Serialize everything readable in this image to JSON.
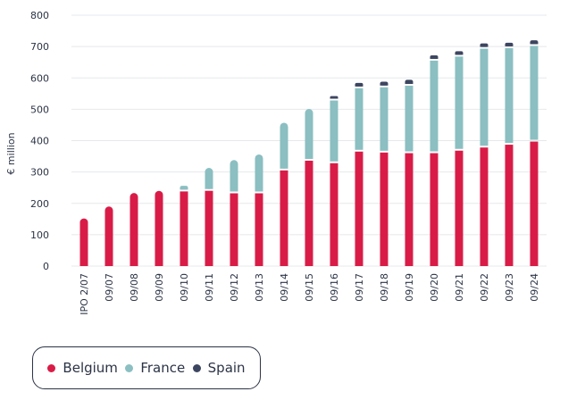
{
  "chart_data": {
    "type": "bar",
    "stacked": true,
    "categories": [
      "IPO 2/07",
      "09/07",
      "09/08",
      "09/09",
      "09/10",
      "09/11",
      "09/12",
      "09/13",
      "09/14",
      "09/15",
      "09/16",
      "09/17",
      "09/18",
      "09/19",
      "09/20",
      "09/21",
      "09/22",
      "09/23",
      "09/24"
    ],
    "series": [
      {
        "name": "Belgium",
        "color": "#d91c47",
        "values": [
          152,
          190,
          233,
          240,
          238,
          240,
          232,
          232,
          305,
          336,
          328,
          365,
          362,
          360,
          360,
          368,
          378,
          387,
          397
        ]
      },
      {
        "name": "France",
        "color": "#8bbfc2",
        "values": [
          0,
          0,
          0,
          0,
          18,
          73,
          106,
          124,
          152,
          165,
          200,
          202,
          208,
          215,
          295,
          300,
          315,
          308,
          305
        ]
      },
      {
        "name": "Spain",
        "color": "#3d4660",
        "values": [
          0,
          0,
          0,
          0,
          0,
          0,
          0,
          0,
          0,
          0,
          14,
          17,
          18,
          19,
          17,
          17,
          17,
          17,
          18
        ]
      }
    ],
    "ylabel": "€ million",
    "ylim": [
      0,
      800
    ],
    "yticks": [
      0,
      100,
      200,
      300,
      400,
      500,
      600,
      700,
      800
    ],
    "grid": true,
    "legend_position": "bottom-left"
  }
}
